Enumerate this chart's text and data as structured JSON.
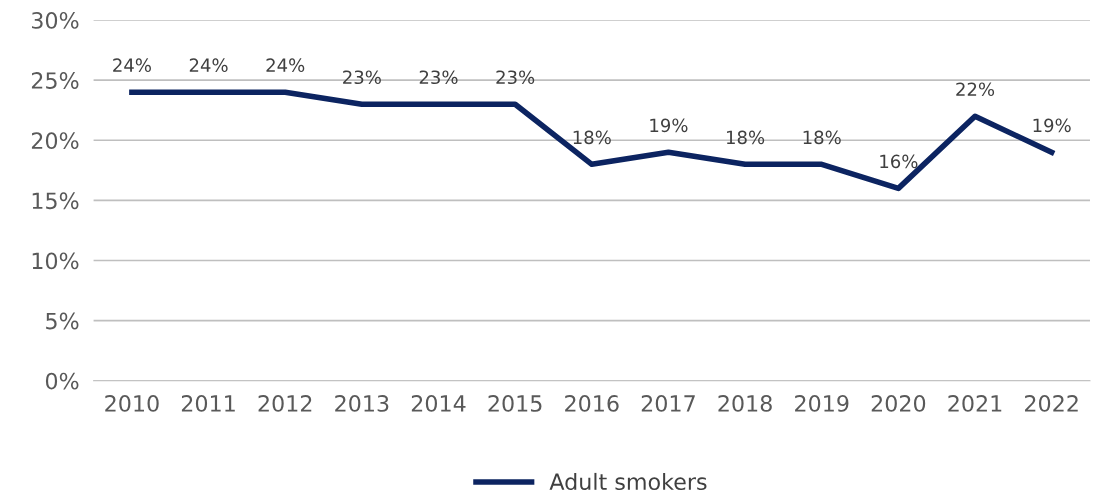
{
  "chart_data": {
    "type": "line",
    "categories": [
      "2010",
      "2011",
      "2012",
      "2013",
      "2014",
      "2015",
      "2016",
      "2017",
      "2018",
      "2019",
      "2020",
      "2021",
      "2022"
    ],
    "series": [
      {
        "name": "Adult smokers",
        "color": "#0c2461",
        "values": [
          24,
          24,
          24,
          23,
          23,
          23,
          18,
          19,
          18,
          18,
          16,
          22,
          19
        ],
        "value_labels": [
          "24%",
          "24%",
          "24%",
          "23%",
          "23%",
          "23%",
          "18%",
          "19%",
          "18%",
          "18%",
          "16%",
          "22%",
          "19%"
        ]
      }
    ],
    "ylim": [
      0,
      30
    ],
    "yticks": [
      {
        "value": 0,
        "label": "0%"
      },
      {
        "value": 5,
        "label": "5%"
      },
      {
        "value": 10,
        "label": "10%"
      },
      {
        "value": 15,
        "label": "15%"
      },
      {
        "value": 20,
        "label": "20%"
      },
      {
        "value": 25,
        "label": "25%"
      },
      {
        "value": 30,
        "label": "30%"
      }
    ],
    "grid": "y",
    "legend": "bottom",
    "marker": "none",
    "line_style": "solid"
  }
}
